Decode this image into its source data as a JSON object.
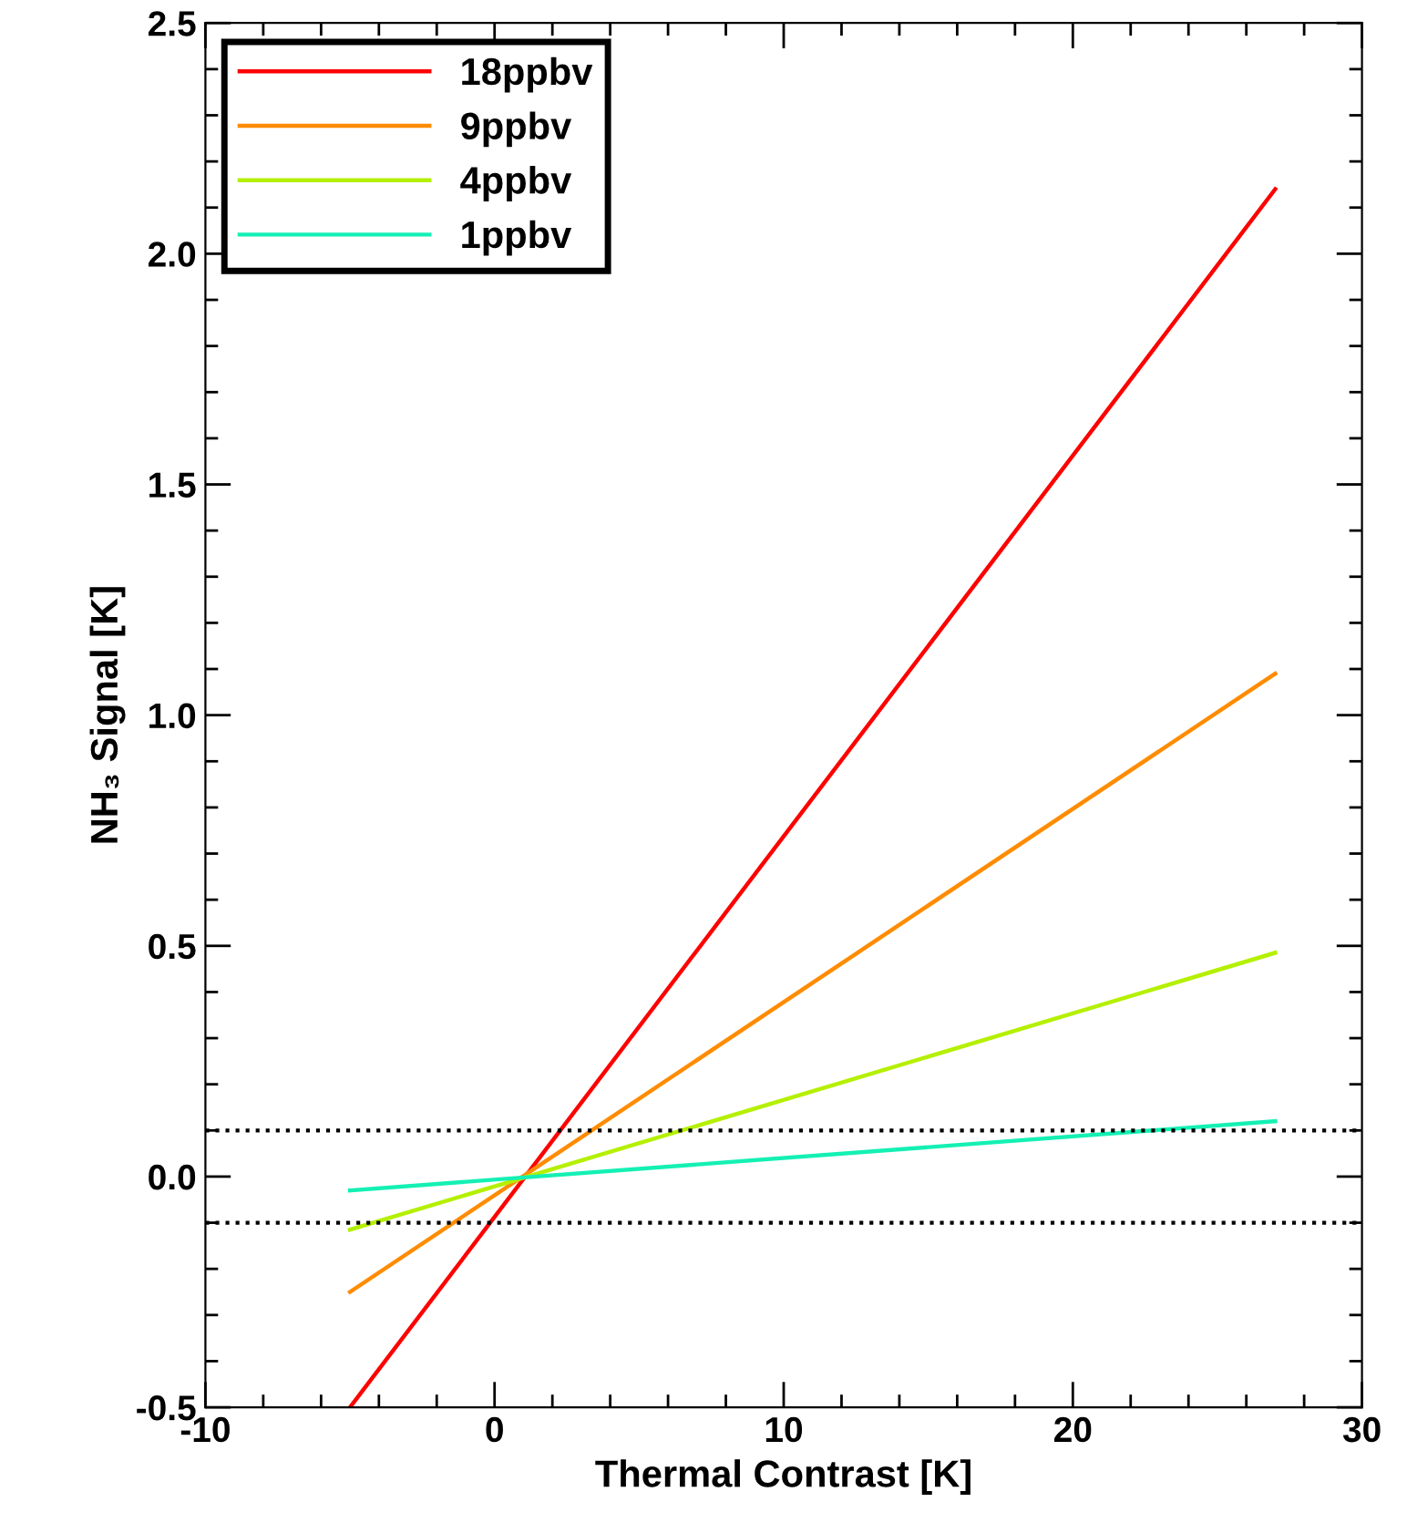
{
  "chart_data": {
    "type": "line",
    "xlabel": "Thermal Contrast [K]",
    "ylabel": "NH₃ Signal [K]",
    "x": [
      -5,
      27
    ],
    "series": [
      {
        "name": "18ppbv",
        "color": "#ff0000",
        "values": [
          -0.5,
          2.14
        ]
      },
      {
        "name": "9ppbv",
        "color": "#ff8c00",
        "values": [
          -0.25,
          1.09
        ]
      },
      {
        "name": "4ppbv",
        "color": "#b4f000",
        "values": [
          -0.115,
          0.485
        ]
      },
      {
        "name": "1ppbv",
        "color": "#14f0b4",
        "values": [
          -0.03,
          0.12
        ]
      }
    ],
    "xlim": [
      -10,
      30
    ],
    "xticks": [
      -10,
      0,
      10,
      20,
      30
    ],
    "ylim": [
      -0.5,
      2.5
    ],
    "yticks": [
      {
        "value": -0.5,
        "label": "-0.5"
      },
      {
        "value": 0,
        "label": "0.0"
      },
      {
        "value": 0.5,
        "label": "0.5"
      },
      {
        "value": 1,
        "label": "1.0"
      },
      {
        "value": 1.5,
        "label": "1.5"
      },
      {
        "value": 2,
        "label": "2.0"
      },
      {
        "value": 2.5,
        "label": "2.5"
      }
    ],
    "ref_lines": [
      {
        "axis": "y",
        "value": 0.1,
        "color": "#000000",
        "line_style": "dotted"
      },
      {
        "axis": "y",
        "value": -0.1,
        "color": "#000000",
        "line_style": "dotted"
      }
    ],
    "legend": "top left",
    "grid": false,
    "marker": "none",
    "line_style": "solid"
  }
}
